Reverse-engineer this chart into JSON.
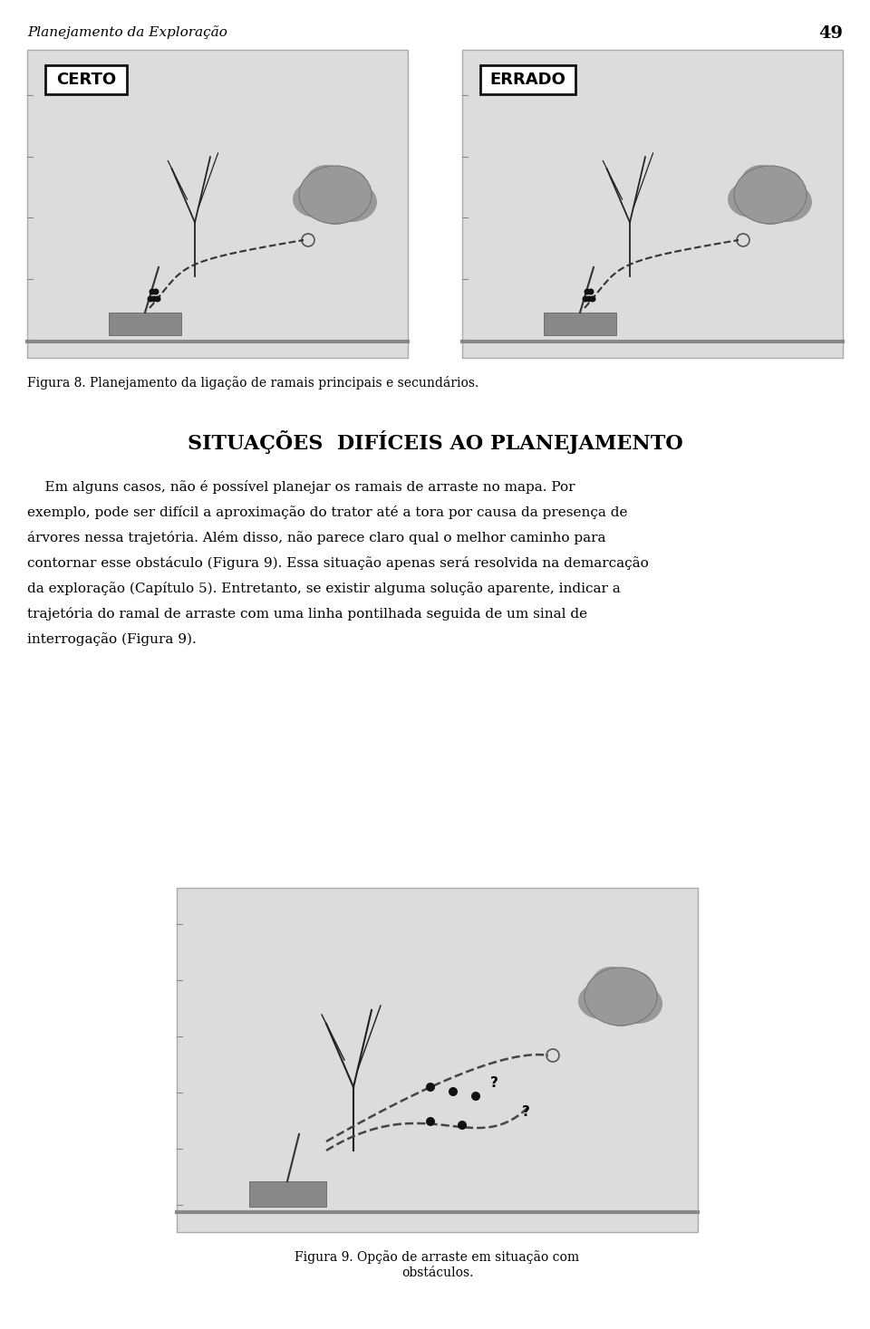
{
  "page_title": "Planejamento da Exploração",
  "page_number": "49",
  "fig8_caption": "Figura 8. Planejamento da ligação de ramais principais e secundários.",
  "section_title": "SITUAÇÕES  DIFÍCEIS AO PLANEJAMENTO",
  "body_text": [
    "    Em alguns casos, não é possível planejar os ramais de arraste no mapa. Por",
    "exemplo, pode ser difícil a aproximação do trator até a tora por causa da presença de",
    "árvores nessa trajetória. Além disso, não parece claro qual o melhor caminho para",
    "contornar esse obstáculo (Figura 9). Essa situação apenas será resolvida na demarcação",
    "da exploração (Capítulo 5). Entretanto, se existir alguma solução aparente, indicar a",
    "trajetória do ramal de arraste com uma linha pontilhada seguida de um sinal de",
    "interrogação (Figura 9)."
  ],
  "fig9_caption_line1": "Figura 9. Opção de arraste em situação com",
  "fig9_caption_line2": "obstáculos.",
  "bg_color": "#ffffff",
  "panel_bg": "#e8e8e8",
  "dark_gray": "#808080",
  "darker_gray": "#555555",
  "tree_color": "#1a1a1a",
  "tractor_color": "#888888",
  "log_color": "#aaaaaa"
}
